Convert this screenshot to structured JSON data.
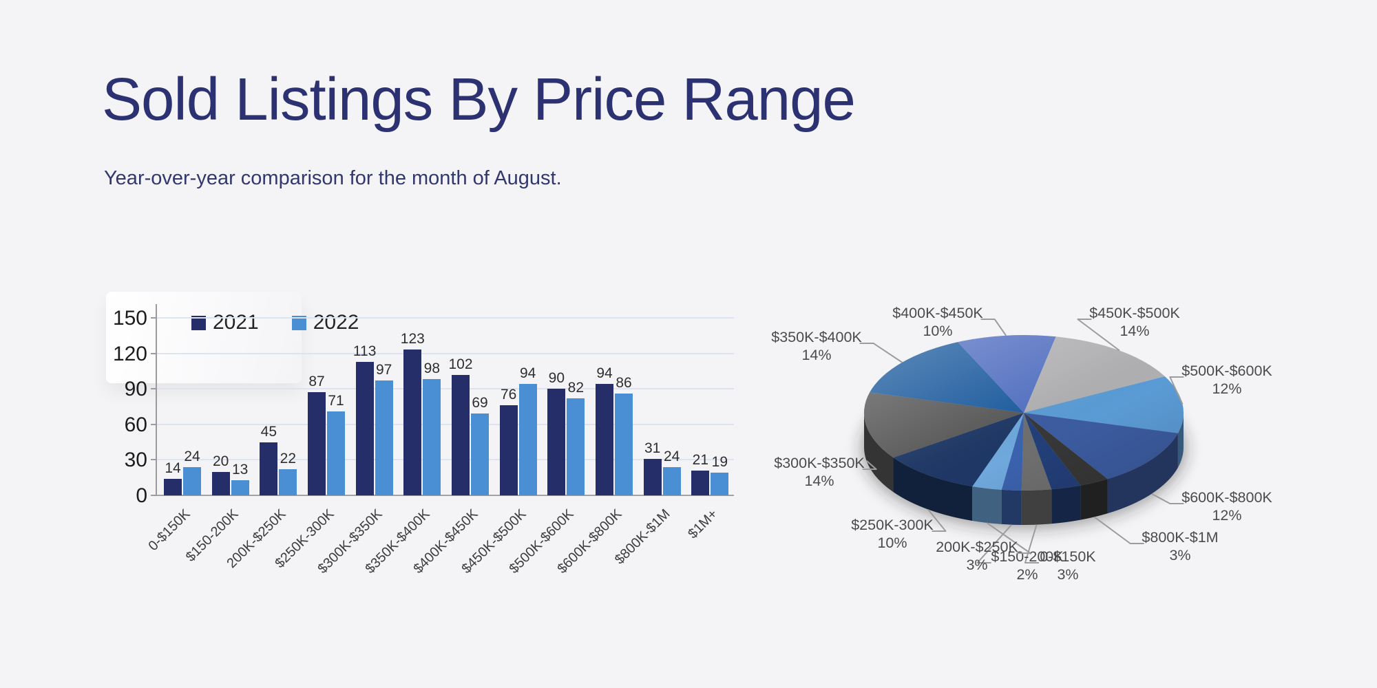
{
  "page": {
    "background": "#f4f4f6"
  },
  "header": {
    "title": "Sold Listings By Price Range",
    "subtitle": "Year-over-year comparison for the month of August.",
    "title_color": "#2b3171",
    "subtitle_color": "#32376d"
  },
  "chart_data": [
    {
      "type": "bar",
      "title": "",
      "categories": [
        "0-$150K",
        "$150-200K",
        "200K-$250K",
        "$250K-300K",
        "$300K-$350K",
        "$350K-$400K",
        "$400K-$450K",
        "$450K-$500K",
        "$500K-$600K",
        "$600K-$800K",
        "$800K-$1M",
        "$1M+"
      ],
      "series": [
        {
          "name": "2021",
          "color": "#252e68",
          "values": [
            14,
            20,
            45,
            87,
            113,
            123,
            102,
            76,
            90,
            94,
            31,
            21
          ]
        },
        {
          "name": "2022",
          "color": "#4a8fd3",
          "values": [
            24,
            13,
            22,
            71,
            97,
            98,
            69,
            94,
            82,
            86,
            24,
            19
          ]
        }
      ],
      "xlabel": "",
      "ylabel": "",
      "ylim": [
        0,
        150
      ],
      "yticks": [
        0,
        30,
        60,
        90,
        120,
        150
      ],
      "grid": true,
      "legend_position": "top-left-inside"
    },
    {
      "type": "pie",
      "style": "3d",
      "start_angle_deg": 170,
      "direction": "clockwise",
      "slices": [
        {
          "label": "0-$150K",
          "pct": 3,
          "pct_label": "3%",
          "color": "#6f6f6f",
          "labeled": true
        },
        {
          "label": "$150-200K",
          "pct": 2,
          "pct_label": "2%",
          "color": "#3b62ae",
          "labeled": true
        },
        {
          "label": "200K-$250K",
          "pct": 3,
          "pct_label": "3%",
          "color": "#6fa8dc",
          "labeled": true
        },
        {
          "label": "$250K-300K",
          "pct": 10,
          "pct_label": "10%",
          "color": "#1e3765",
          "labeled": true
        },
        {
          "label": "$300K-$350K",
          "pct": 14,
          "pct_label": "14%",
          "color": "#595959",
          "labeled": true
        },
        {
          "label": "$350K-$400K",
          "pct": 14,
          "pct_label": "14%",
          "color": "#1e5c9e",
          "labeled": true
        },
        {
          "label": "$400K-$450K",
          "pct": 10,
          "pct_label": "10%",
          "color": "#5471c1",
          "labeled": true
        },
        {
          "label": "$450K-$500K",
          "pct": 14,
          "pct_label": "14%",
          "color": "#b0b0b3",
          "labeled": true
        },
        {
          "label": "$500K-$600K",
          "pct": 12,
          "pct_label": "12%",
          "color": "#5b9bd5",
          "labeled": true
        },
        {
          "label": "$600K-$800K",
          "pct": 12,
          "pct_label": "12%",
          "color": "#3c5ca0",
          "labeled": true
        },
        {
          "label": "$800K-$1M",
          "pct": 3,
          "pct_label": "3%",
          "color": "#373737",
          "labeled": true
        },
        {
          "label": "$1M+",
          "pct": 3,
          "pct_label": "3%",
          "color": "#233f78",
          "labeled": false
        }
      ]
    }
  ]
}
